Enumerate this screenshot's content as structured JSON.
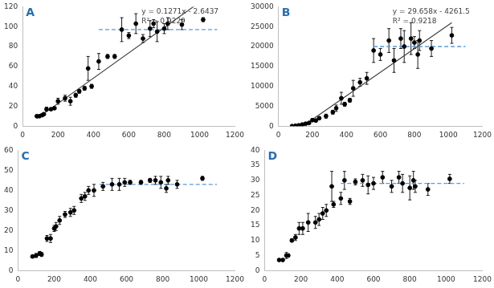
{
  "chart_data": [
    {
      "type": "scatter",
      "title": "A",
      "x": [
        80,
        95,
        110,
        120,
        135,
        160,
        180,
        200,
        240,
        270,
        300,
        320,
        350,
        370,
        390,
        430,
        480,
        520,
        560,
        600,
        640,
        680,
        720,
        740,
        760,
        800,
        820,
        900,
        1020
      ],
      "values": [
        10,
        10,
        11,
        12,
        17,
        17,
        18,
        25,
        28,
        25,
        31,
        35,
        38,
        58,
        40,
        65,
        70,
        70,
        97,
        91,
        103,
        88,
        98,
        103,
        95,
        98,
        103,
        102,
        107
      ],
      "errors": [
        0,
        0,
        0,
        1,
        2,
        1,
        1,
        3,
        3,
        4,
        2,
        2,
        2,
        12,
        2,
        8,
        2,
        2,
        12,
        3,
        10,
        4,
        8,
        4,
        10,
        5,
        6,
        5,
        2
      ],
      "color": "#000000",
      "marker": "circle",
      "trendline": {
        "slope": 0.1271,
        "intercept": -2.6437,
        "x": [
          80,
          1000
        ],
        "color": "#404040",
        "line_style": "solid"
      },
      "reference_line": {
        "y": 97,
        "x": [
          430,
          1100
        ],
        "color": "#5b9bd5",
        "line_style": "dashed"
      },
      "annotations": [
        "y = 0.1271x - 2.6437",
        "R² = 0.9229"
      ],
      "xlim": [
        0,
        1200
      ],
      "xticks": [
        0,
        200,
        400,
        600,
        800,
        1000,
        1200
      ],
      "ylim": [
        0,
        120
      ],
      "yticks": [
        0,
        20,
        40,
        60,
        80,
        100,
        120
      ],
      "grid": false
    },
    {
      "type": "scatter",
      "title": "B",
      "x": [
        80,
        100,
        120,
        140,
        160,
        180,
        200,
        220,
        240,
        280,
        320,
        340,
        370,
        390,
        420,
        440,
        480,
        520,
        560,
        600,
        650,
        680,
        720,
        740,
        780,
        800,
        820,
        830,
        900,
        1020
      ],
      "values": [
        0,
        100,
        200,
        400,
        600,
        800,
        1500,
        1400,
        2000,
        2500,
        3500,
        4500,
        7000,
        5500,
        6500,
        9500,
        11000,
        12000,
        19000,
        18000,
        21500,
        16500,
        22000,
        20000,
        22000,
        21000,
        18000,
        21500,
        19500,
        22800
      ],
      "errors": [
        0,
        0,
        0,
        0,
        0,
        200,
        300,
        300,
        300,
        500,
        500,
        800,
        1500,
        500,
        500,
        2000,
        1000,
        1500,
        3000,
        1500,
        3000,
        3000,
        2500,
        4000,
        4000,
        1500,
        3500,
        2500,
        2000,
        2000
      ],
      "color": "#000000",
      "marker": "circle",
      "trendline": {
        "slope": 29.658,
        "intercept": -4261.5,
        "x": [
          145,
          1020
        ],
        "color": "#404040",
        "line_style": "solid"
      },
      "reference_line": {
        "y": 20000,
        "x": [
          560,
          1100
        ],
        "color": "#5b9bd5",
        "line_style": "dashed"
      },
      "annotations": [
        "y = 29.658x - 4261.5",
        "R² = 0.9218"
      ],
      "xlim": [
        0,
        1200
      ],
      "xticks": [
        0,
        200,
        400,
        600,
        800,
        1000,
        1200
      ],
      "ylim": [
        0,
        30000
      ],
      "yticks": [
        0,
        5000,
        10000,
        15000,
        20000,
        25000,
        30000
      ],
      "grid": false
    },
    {
      "type": "scatter",
      "title": "C",
      "x": [
        80,
        100,
        120,
        130,
        160,
        180,
        200,
        210,
        230,
        260,
        290,
        310,
        350,
        370,
        390,
        420,
        470,
        520,
        560,
        590,
        620,
        680,
        730,
        760,
        790,
        820,
        830,
        880,
        1020
      ],
      "values": [
        7,
        7.5,
        8.5,
        8,
        16,
        16,
        21,
        22,
        25,
        28,
        29,
        30,
        36,
        37,
        40,
        40,
        42,
        43,
        43,
        44,
        44,
        44,
        45,
        45,
        44,
        41,
        45,
        43,
        46
      ],
      "errors": [
        0.5,
        1,
        1,
        1,
        1.5,
        2,
        1.5,
        2,
        2,
        1.5,
        2,
        2,
        2,
        2,
        2,
        3,
        2,
        3,
        3,
        2,
        1,
        1,
        1,
        2,
        3,
        2,
        2,
        2,
        1
      ],
      "color": "#000000",
      "marker": "circle",
      "reference_line": {
        "y": 43,
        "x": [
          450,
          1100
        ],
        "color": "#5b9bd5",
        "line_style": "dashed"
      },
      "xlim": [
        0,
        1200
      ],
      "xticks": [
        0,
        200,
        400,
        600,
        800,
        1000,
        1200
      ],
      "ylim": [
        0,
        60
      ],
      "yticks": [
        0,
        10,
        20,
        30,
        40,
        50,
        60
      ],
      "grid": false
    },
    {
      "type": "scatter",
      "title": "D",
      "x": [
        80,
        100,
        120,
        130,
        150,
        170,
        190,
        210,
        240,
        280,
        300,
        320,
        340,
        370,
        380,
        420,
        440,
        470,
        500,
        540,
        570,
        600,
        650,
        700,
        740,
        760,
        800,
        820,
        830,
        900,
        1020
      ],
      "values": [
        3.5,
        3.5,
        5,
        5,
        10,
        11,
        14,
        14,
        16,
        16,
        17,
        19,
        20,
        28,
        22,
        24,
        30,
        23,
        29.5,
        30,
        28.5,
        29,
        31,
        28,
        31,
        29,
        27.5,
        30,
        28,
        27,
        30.5
      ],
      "errors": [
        0,
        0,
        1,
        0.5,
        0.5,
        1,
        2,
        2,
        3,
        2,
        2,
        2,
        2,
        5,
        1,
        2,
        3,
        1,
        1,
        2,
        3,
        2,
        2,
        2,
        2,
        3,
        4,
        3,
        2,
        2,
        1.5
      ],
      "color": "#000000",
      "marker": "circle",
      "reference_line": {
        "y": 29,
        "x": [
          420,
          1100
        ],
        "color": "#5b9bd5",
        "line_style": "dashed"
      },
      "xlim": [
        0,
        1200
      ],
      "xticks": [
        0,
        200,
        400,
        600,
        800,
        1000,
        1200
      ],
      "ylim": [
        0,
        40
      ],
      "yticks": [
        0,
        5,
        10,
        15,
        20,
        25,
        30,
        35,
        40
      ],
      "grid": false
    }
  ]
}
